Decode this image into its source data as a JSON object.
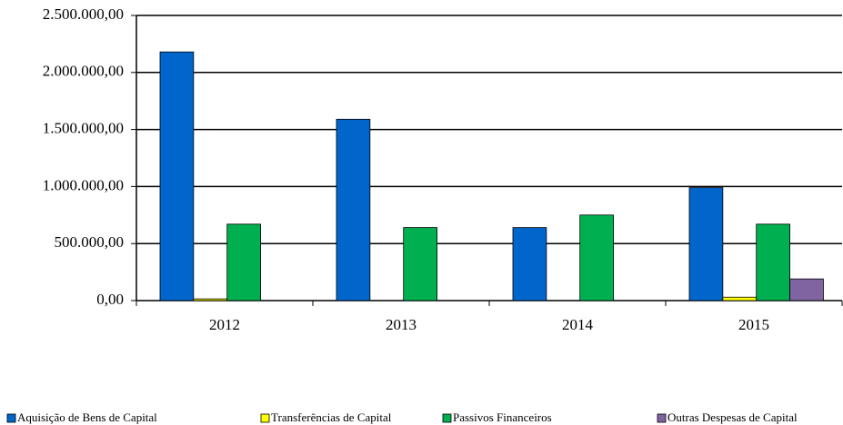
{
  "chart_data": {
    "type": "bar",
    "categories": [
      "2012",
      "2013",
      "2014",
      "2015"
    ],
    "series": [
      {
        "name": "Aquisição de Bens de Capital",
        "color": "#0066cc",
        "values": [
          2180000,
          1590000,
          640000,
          990000
        ]
      },
      {
        "name": "Transferências de Capital",
        "color": "#ffff00",
        "values": [
          15000,
          0,
          0,
          30000
        ]
      },
      {
        "name": "Passivos Financeiros",
        "color": "#00b050",
        "values": [
          670000,
          640000,
          750000,
          670000
        ]
      },
      {
        "name": "Outras Despesas de Capital",
        "color": "#8064a2",
        "values": [
          0,
          0,
          0,
          190000
        ]
      }
    ],
    "ylim": [
      0,
      2500000
    ],
    "yticks": [
      {
        "value": 0,
        "label": "0,00"
      },
      {
        "value": 500000,
        "label": "500.000,00"
      },
      {
        "value": 1000000,
        "label": "1.000.000,00"
      },
      {
        "value": 1500000,
        "label": "1.500.000,00"
      },
      {
        "value": 2000000,
        "label": "2.000.000,00"
      },
      {
        "value": 2500000,
        "label": "2.500.000,00"
      }
    ],
    "grid": true,
    "legend": "bottom"
  }
}
